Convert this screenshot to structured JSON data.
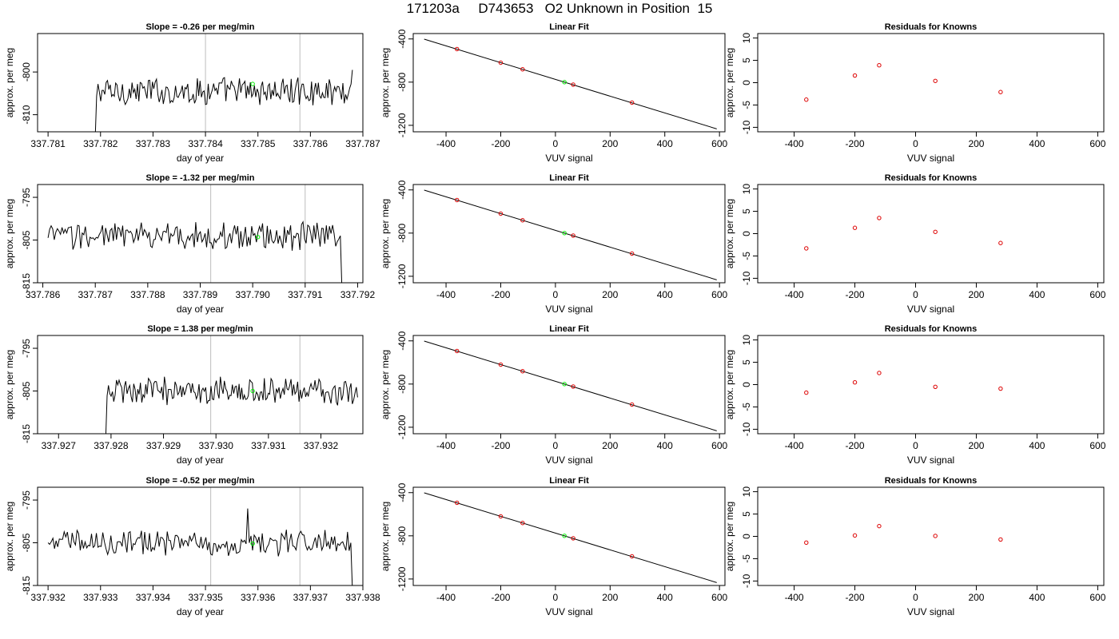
{
  "page_title": "171203a     D743653   O2 Unknown in Position  15",
  "colors": {
    "trace": "#000000",
    "marker_green": "#00ee00",
    "marker_red": "#dd0000",
    "vline": "#bebebe",
    "frame": "#000000"
  },
  "chart_data": [
    {
      "type": "line",
      "title": "Slope =  -0.26  per meg/min",
      "xlabel": "day of year",
      "ylabel": "approx. per meg",
      "xlim": [
        337.7808,
        337.787
      ],
      "ylim": [
        -814,
        -791
      ],
      "xticks": [
        "337.781",
        "337.782",
        "337.783",
        "337.784",
        "337.785",
        "337.786",
        "337.787"
      ],
      "xtick_values": [
        337.781,
        337.782,
        337.783,
        337.784,
        337.785,
        337.786,
        337.787
      ],
      "yticks": [
        "-810",
        "-800"
      ],
      "ytick_values": [
        -810,
        -800
      ],
      "vlines": [
        337.784,
        337.7858
      ],
      "trace_start": 337.7819,
      "trace_end": 337.7868,
      "trace_mean": -804.5,
      "trace_amp": 2.8,
      "trace_start_value": -815,
      "trace_end_value": -799.5,
      "marker": {
        "x": 337.7849,
        "y": -802.8
      }
    },
    {
      "type": "scatter",
      "title": "Linear Fit",
      "xlabel": "VUV signal",
      "ylabel": "approx. per meg",
      "xlim": [
        -520,
        620
      ],
      "ylim": [
        -1260,
        -350
      ],
      "xticks": [
        "-400",
        "-200",
        "0",
        "200",
        "400",
        "600"
      ],
      "xtick_values": [
        -400,
        -200,
        0,
        200,
        400,
        600
      ],
      "yticks": [
        "-400",
        "-800",
        "-1200"
      ],
      "ytick_values": [
        -400,
        -800,
        -1200
      ],
      "line": {
        "x": [
          -480,
          590
        ],
        "y": [
          -402,
          -1233
        ]
      },
      "knowns_x": [
        -360,
        -200,
        -120,
        65,
        280
      ],
      "knowns_y": [
        -494,
        -620,
        -681,
        -823,
        -990
      ],
      "unknown": {
        "x": 33,
        "y": -800
      }
    },
    {
      "type": "scatter",
      "title": "Residuals for Knowns",
      "xlabel": "VUV signal",
      "ylabel": "approx. per meg",
      "xlim": [
        -520,
        620
      ],
      "ylim": [
        -11,
        11
      ],
      "xticks": [
        "-400",
        "-200",
        "0",
        "200",
        "400",
        "600"
      ],
      "xtick_values": [
        -400,
        -200,
        0,
        200,
        400,
        600
      ],
      "yticks": [
        "-10",
        "-5",
        "0",
        "5",
        "10"
      ],
      "ytick_values": [
        -10,
        -5,
        0,
        5,
        10
      ],
      "x": [
        -360,
        -200,
        -120,
        65,
        280
      ],
      "y": [
        -3.8,
        1.6,
        3.9,
        0.4,
        -2.1
      ]
    },
    {
      "type": "line",
      "title": "Slope =  -1.32  per meg/min",
      "xlabel": "day of year",
      "ylabel": "approx. per meg",
      "xlim": [
        337.7859,
        337.7921
      ],
      "ylim": [
        -815,
        -792
      ],
      "xticks": [
        "337.786",
        "337.787",
        "337.788",
        "337.789",
        "337.790",
        "337.791",
        "337.792"
      ],
      "xtick_values": [
        337.786,
        337.787,
        337.788,
        337.789,
        337.79,
        337.791,
        337.792
      ],
      "yticks": [
        "-815",
        "-805",
        "-795"
      ],
      "ytick_values": [
        -815,
        -805,
        -795
      ],
      "vlines": [
        337.7892,
        337.791
      ],
      "trace_start": 337.7861,
      "trace_end": 337.7917,
      "trace_mean": -804,
      "trace_amp": 2.8,
      "trace_start_value": -804.5,
      "trace_end_value": -816,
      "marker": {
        "x": 337.7901,
        "y": -804.3
      }
    },
    {
      "type": "scatter",
      "title": "Linear Fit",
      "xlabel": "VUV signal",
      "ylabel": "approx. per meg",
      "xlim": [
        -520,
        620
      ],
      "ylim": [
        -1260,
        -350
      ],
      "xticks": [
        "-400",
        "-200",
        "0",
        "200",
        "400",
        "600"
      ],
      "xtick_values": [
        -400,
        -200,
        0,
        200,
        400,
        600
      ],
      "yticks": [
        "-400",
        "-800",
        "-1200"
      ],
      "ytick_values": [
        -400,
        -800,
        -1200
      ],
      "line": {
        "x": [
          -480,
          590
        ],
        "y": [
          -402,
          -1233
        ]
      },
      "knowns_x": [
        -360,
        -200,
        -120,
        65,
        280
      ],
      "knowns_y": [
        -494,
        -620,
        -681,
        -823,
        -990
      ],
      "unknown": {
        "x": 33,
        "y": -800
      }
    },
    {
      "type": "scatter",
      "title": "Residuals for Knowns",
      "xlabel": "VUV signal",
      "ylabel": "approx. per meg",
      "xlim": [
        -520,
        620
      ],
      "ylim": [
        -11,
        11
      ],
      "xticks": [
        "-400",
        "-200",
        "0",
        "200",
        "400",
        "600"
      ],
      "xtick_values": [
        -400,
        -200,
        0,
        200,
        400,
        600
      ],
      "yticks": [
        "-10",
        "-5",
        "0",
        "5",
        "10"
      ],
      "ytick_values": [
        -10,
        -5,
        0,
        5,
        10
      ],
      "x": [
        -360,
        -200,
        -120,
        65,
        280
      ],
      "y": [
        -3.3,
        1.3,
        3.5,
        0.4,
        -2.1
      ]
    },
    {
      "type": "line",
      "title": "Slope =  1.38  per meg/min",
      "xlabel": "day of year",
      "ylabel": "approx. per meg",
      "xlim": [
        337.9266,
        337.9328
      ],
      "ylim": [
        -815,
        -792
      ],
      "xticks": [
        "337.927",
        "337.928",
        "337.929",
        "337.930",
        "337.931",
        "337.932"
      ],
      "xtick_values": [
        337.927,
        337.928,
        337.929,
        337.93,
        337.931,
        337.932
      ],
      "yticks": [
        "-815",
        "-805",
        "-795"
      ],
      "ytick_values": [
        -815,
        -805,
        -795
      ],
      "vlines": [
        337.9299,
        337.9316
      ],
      "trace_start": 337.9279,
      "trace_end": 337.9327,
      "trace_mean": -805,
      "trace_amp": 2.8,
      "trace_start_value": -816,
      "trace_end_value": -806.5,
      "marker": {
        "x": 337.9307,
        "y": -805
      }
    },
    {
      "type": "scatter",
      "title": "Linear Fit",
      "xlabel": "VUV signal",
      "ylabel": "approx. per meg",
      "xlim": [
        -520,
        620
      ],
      "ylim": [
        -1260,
        -350
      ],
      "xticks": [
        "-400",
        "-200",
        "0",
        "200",
        "400",
        "600"
      ],
      "xtick_values": [
        -400,
        -200,
        0,
        200,
        400,
        600
      ],
      "yticks": [
        "-400",
        "-800",
        "-1200"
      ],
      "ytick_values": [
        -400,
        -800,
        -1200
      ],
      "line": {
        "x": [
          -480,
          590
        ],
        "y": [
          -402,
          -1233
        ]
      },
      "knowns_x": [
        -360,
        -200,
        -120,
        65,
        280
      ],
      "knowns_y": [
        -494,
        -620,
        -681,
        -823,
        -990
      ],
      "unknown": {
        "x": 33,
        "y": -800
      }
    },
    {
      "type": "scatter",
      "title": "Residuals for Knowns",
      "xlabel": "VUV signal",
      "ylabel": "approx. per meg",
      "xlim": [
        -520,
        620
      ],
      "ylim": [
        -11,
        11
      ],
      "xticks": [
        "-400",
        "-200",
        "0",
        "200",
        "400",
        "600"
      ],
      "xtick_values": [
        -400,
        -200,
        0,
        200,
        400,
        600
      ],
      "yticks": [
        "-10",
        "-5",
        "0",
        "5",
        "10"
      ],
      "ytick_values": [
        -10,
        -5,
        0,
        5,
        10
      ],
      "x": [
        -360,
        -200,
        -120,
        65,
        280
      ],
      "y": [
        -1.8,
        0.5,
        2.6,
        -0.5,
        -0.9
      ]
    },
    {
      "type": "line",
      "title": "Slope =  -0.52  per meg/min",
      "xlabel": "day of year",
      "ylabel": "approx. per meg",
      "xlim": [
        337.9318,
        337.938
      ],
      "ylim": [
        -815,
        -792
      ],
      "xticks": [
        "337.932",
        "337.933",
        "337.934",
        "337.935",
        "337.936",
        "337.937",
        "337.938"
      ],
      "xtick_values": [
        337.932,
        337.933,
        337.934,
        337.935,
        337.936,
        337.937,
        337.938
      ],
      "yticks": [
        "-815",
        "-805",
        "-795"
      ],
      "ytick_values": [
        -815,
        -805,
        -795
      ],
      "vlines": [
        337.9351,
        337.9368
      ],
      "trace_start": 337.932,
      "trace_end": 337.9378,
      "trace_mean": -805,
      "trace_amp": 2.6,
      "trace_start_value": -805,
      "trace_end_value": -816,
      "trace_spike": {
        "x": 337.9358,
        "y": -797
      },
      "marker": {
        "x": 337.9359,
        "y": -805.2
      }
    },
    {
      "type": "scatter",
      "title": "Linear Fit",
      "xlabel": "VUV signal",
      "ylabel": "approx. per meg",
      "xlim": [
        -520,
        620
      ],
      "ylim": [
        -1260,
        -350
      ],
      "xticks": [
        "-400",
        "-200",
        "0",
        "200",
        "400",
        "600"
      ],
      "xtick_values": [
        -400,
        -200,
        0,
        200,
        400,
        600
      ],
      "yticks": [
        "-400",
        "-800",
        "-1200"
      ],
      "ytick_values": [
        -400,
        -800,
        -1200
      ],
      "line": {
        "x": [
          -480,
          590
        ],
        "y": [
          -402,
          -1233
        ]
      },
      "knowns_x": [
        -360,
        -200,
        -120,
        65,
        280
      ],
      "knowns_y": [
        -494,
        -620,
        -681,
        -823,
        -990
      ],
      "unknown": {
        "x": 33,
        "y": -800
      }
    },
    {
      "type": "scatter",
      "title": "Residuals for Knowns",
      "xlabel": "VUV signal",
      "ylabel": "approx. per meg",
      "xlim": [
        -520,
        620
      ],
      "ylim": [
        -11,
        11
      ],
      "xticks": [
        "-400",
        "-200",
        "0",
        "200",
        "400",
        "600"
      ],
      "xtick_values": [
        -400,
        -200,
        0,
        200,
        400,
        600
      ],
      "yticks": [
        "-10",
        "-5",
        "0",
        "5",
        "10"
      ],
      "ytick_values": [
        -10,
        -5,
        0,
        5,
        10
      ],
      "x": [
        -360,
        -200,
        -120,
        65,
        280
      ],
      "y": [
        -1.4,
        0.2,
        2.3,
        0.1,
        -0.7
      ]
    }
  ]
}
